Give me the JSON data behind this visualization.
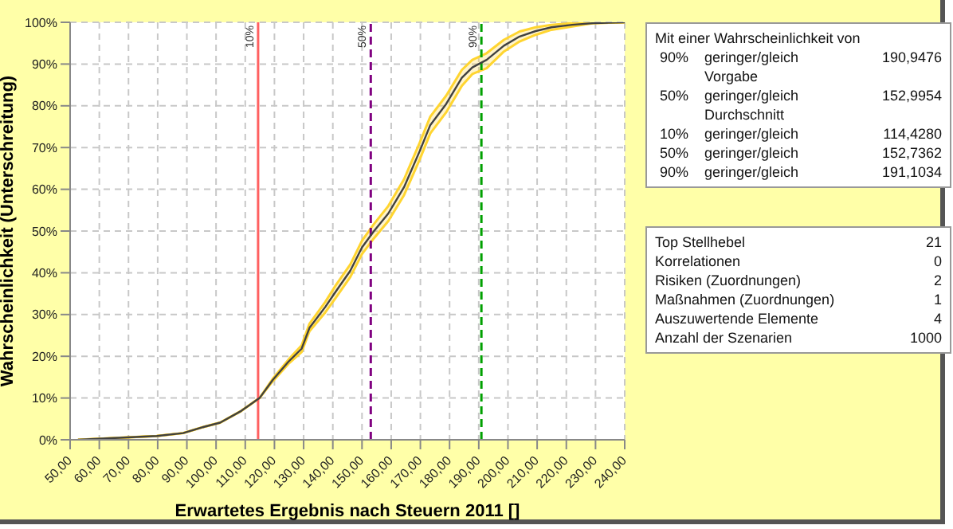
{
  "chart_data": [
    {
      "type": "line",
      "xlabel": "Erwartetes Ergebnis nach Steuern 2011 []",
      "ylabel": "Wahrscheinlichkeit (Unterschreitung)",
      "x": [
        52.7,
        79.7,
        88.7,
        95.9,
        101.4,
        108.6,
        114.9,
        119.4,
        124.8,
        129.3,
        132,
        137.4,
        141,
        146,
        150,
        154,
        159,
        164.4,
        169.8,
        173.4,
        178.8,
        184.2,
        187.8,
        192.7,
        198.6,
        204,
        209.5,
        214.9,
        222,
        229.3,
        240
      ],
      "series": [
        {
          "color": "#404040",
          "values": [
            0,
            0.9,
            1.6,
            3.1,
            4.1,
            6.9,
            10,
            14.3,
            18.7,
            21.8,
            26.8,
            31.8,
            35.5,
            40.5,
            46.1,
            49.9,
            54.2,
            60.5,
            69.2,
            75.4,
            80.4,
            86.7,
            89.2,
            91,
            94.4,
            96.6,
            97.9,
            98.8,
            99.4,
            99.8,
            100
          ],
          "lower": [
            0,
            0.9,
            1.6,
            3.1,
            4.1,
            6.9,
            10,
            14,
            18.2,
            21,
            26,
            30.5,
            34,
            39,
            44.5,
            48.2,
            52.4,
            58.6,
            67.2,
            73.4,
            78.4,
            84.8,
            87.6,
            89,
            93,
            95.4,
            97,
            98.2,
            99,
            99.8,
            100
          ],
          "upper": [
            0,
            0.9,
            1.6,
            3.1,
            4.1,
            6.9,
            10,
            14.6,
            19.2,
            22.6,
            27.8,
            33,
            37,
            42,
            47.7,
            51.6,
            56,
            62.4,
            71.2,
            77.4,
            82.4,
            88.6,
            91,
            92.6,
            95.8,
            97.8,
            98.8,
            99.4,
            99.8,
            99.8,
            100
          ]
        }
      ],
      "xlim": [
        50,
        240
      ],
      "xticks": [
        {
          "value": 50,
          "label": "50,00"
        },
        {
          "value": 60,
          "label": "60,00"
        },
        {
          "value": 70,
          "label": "70,00"
        },
        {
          "value": 80,
          "label": "80,00"
        },
        {
          "value": 90,
          "label": "90,00"
        },
        {
          "value": 100,
          "label": "100,00"
        },
        {
          "value": 110,
          "label": "110,00"
        },
        {
          "value": 120,
          "label": "120,00"
        },
        {
          "value": 130,
          "label": "130,00"
        },
        {
          "value": 140,
          "label": "140,00"
        },
        {
          "value": 150,
          "label": "150,00"
        },
        {
          "value": 160,
          "label": "160,00"
        },
        {
          "value": 170,
          "label": "170,00"
        },
        {
          "value": 180,
          "label": "180,00"
        },
        {
          "value": 190,
          "label": "190,00"
        },
        {
          "value": 200,
          "label": "200,00"
        },
        {
          "value": 210,
          "label": "210,00"
        },
        {
          "value": 220,
          "label": "220,00"
        },
        {
          "value": 230,
          "label": "230,00"
        },
        {
          "value": 240,
          "label": "240,00"
        }
      ],
      "ylim": [
        0,
        100
      ],
      "yticks": [
        {
          "value": 0,
          "label": "0%"
        },
        {
          "value": 10,
          "label": "10%"
        },
        {
          "value": 20,
          "label": "20%"
        },
        {
          "value": 30,
          "label": "30%"
        },
        {
          "value": 40,
          "label": "40%"
        },
        {
          "value": 50,
          "label": "50%"
        },
        {
          "value": 60,
          "label": "60%"
        },
        {
          "value": 70,
          "label": "70%"
        },
        {
          "value": 80,
          "label": "80%"
        },
        {
          "value": 90,
          "label": "90%"
        },
        {
          "value": 100,
          "label": "100%"
        }
      ],
      "grid": true,
      "marker": "none",
      "line_style": "solid",
      "ref_lines": [
        {
          "axis": "x",
          "value": 114.4,
          "color": "#ff6060",
          "line_style": "solid"
        },
        {
          "axis": "x",
          "value": 153.0,
          "color": "#800080",
          "line_style": "dashed"
        },
        {
          "axis": "x",
          "value": 190.9,
          "color": "#00a000",
          "line_style": "dashed"
        }
      ],
      "annotations": [
        {
          "text": "10%",
          "x": 114.4,
          "y": 100
        },
        {
          "text": "50%",
          "x": 153.0,
          "y": 100
        },
        {
          "text": "90%",
          "x": 190.9,
          "y": 100
        }
      ]
    },
    {
      "type": "other",
      "title": "Mit einer Wahrscheinlichkeit von",
      "annotations": [
        "90%\tgeringer/gleich\t190,9476",
        "\tVorgabe\t",
        "50%\tgeringer/gleich\t152,9954",
        "\tDurchschnitt\t",
        "10%\tgeringer/gleich\t114,4280",
        "50%\tgeringer/gleich\t152,7362",
        "90%\tgeringer/gleich\t191,1034"
      ]
    },
    {
      "type": "other",
      "annotations": [
        "Top Stellhebel\t21",
        "Korrelationen\t0",
        "Risiken (Zuordnungen)\t2",
        "Maßnahmen (Zuordnungen)\t1",
        "Auszuwertende Elemente\t4",
        "Anzahl der Szenarien\t1000"
      ]
    }
  ]
}
